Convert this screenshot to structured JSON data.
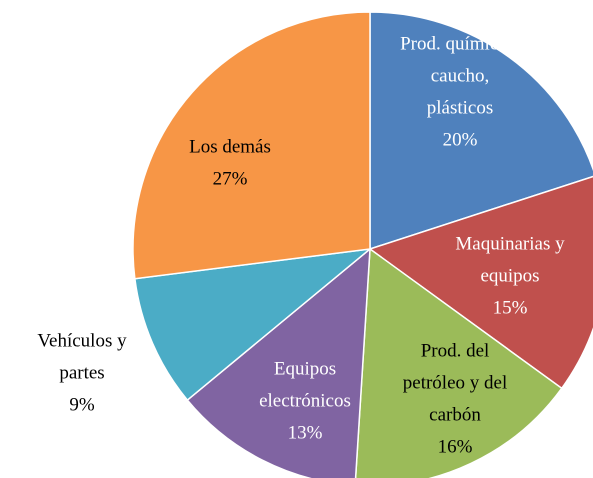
{
  "chart_data": {
    "type": "pie",
    "categories": [
      [
        "Prod. químicos,",
        "caucho,",
        "plásticos"
      ],
      [
        "Maquinarias y",
        "equipos"
      ],
      [
        "Prod. del",
        "petróleo y del",
        "carbón"
      ],
      [
        "Equipos",
        "electrónicos"
      ],
      [
        "Vehículos y",
        "partes"
      ],
      [
        "Los demás"
      ]
    ],
    "values": [
      20,
      15,
      16,
      13,
      9,
      27
    ],
    "value_labels": [
      "20%",
      "15%",
      "16%",
      "13%",
      "9%",
      "27%"
    ],
    "colors": [
      "#4f81bd",
      "#c0504d",
      "#9bbb59",
      "#8064a2",
      "#4bacc6",
      "#f79646"
    ]
  }
}
